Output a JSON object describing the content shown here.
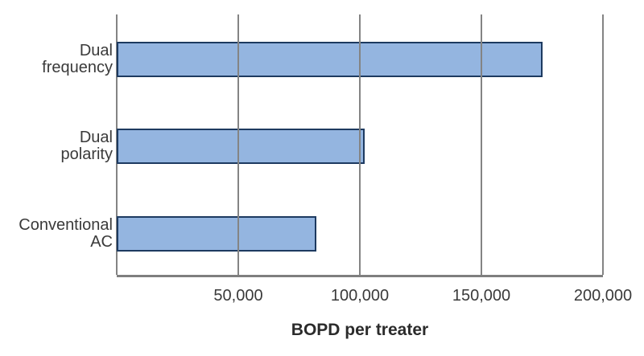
{
  "chart_data": {
    "type": "bar",
    "orientation": "horizontal",
    "title": "",
    "xlabel": "BOPD per treater",
    "ylabel": "",
    "categories": [
      [
        "Dual",
        "frequency"
      ],
      [
        "Dual",
        "polarity"
      ],
      [
        "Conventional",
        "AC"
      ]
    ],
    "values": [
      175000,
      102000,
      82000
    ],
    "xlim": [
      0,
      200000
    ],
    "xticks": [
      0,
      50000,
      100000,
      150000,
      200000
    ],
    "xtick_labels": [
      "",
      "50,000",
      "100,000",
      "150,000",
      "200,000"
    ],
    "grid": "vertical gridlines at each x tick, drawn over bars",
    "legend": "none",
    "colors": {
      "bar_fill": "#94b5e0",
      "bar_border": "#1d3a60",
      "grid_line": "#848484",
      "axis_line": "#7f7f7f",
      "text": "#3a3a3a",
      "background": "#ffffff"
    }
  }
}
